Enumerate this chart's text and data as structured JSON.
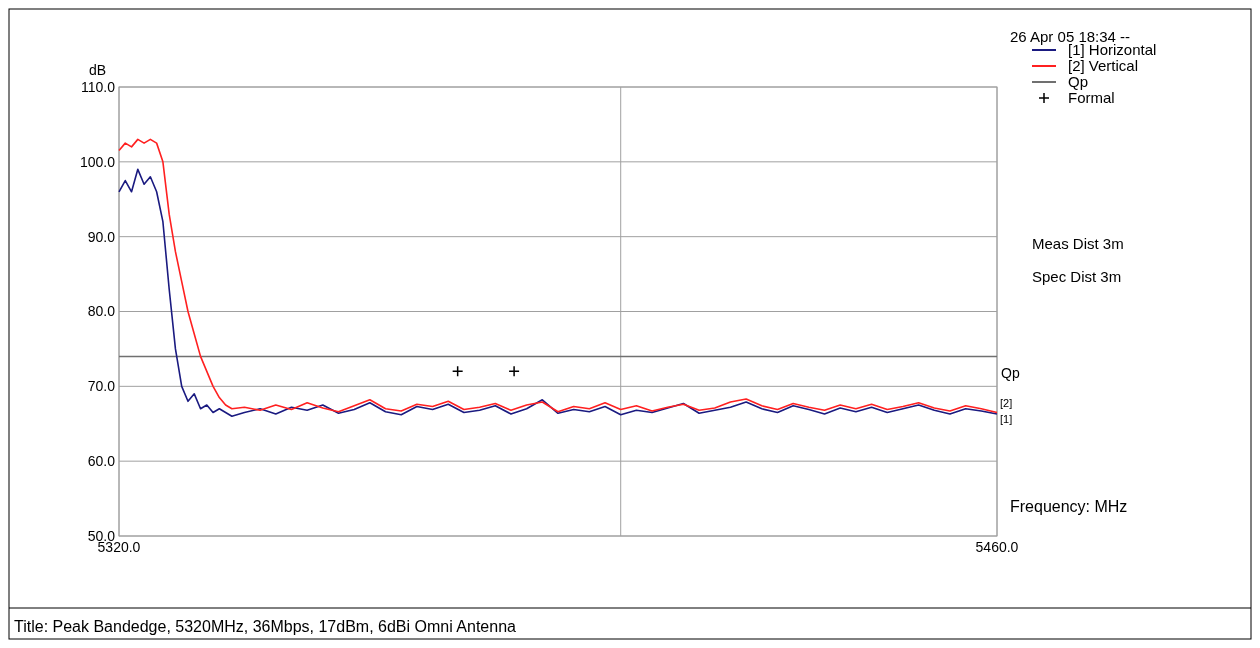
{
  "chart_data": {
    "type": "line",
    "ylabel": "dB",
    "xlabel": "Frequency: MHz",
    "x": [
      5320,
      5321,
      5322,
      5323,
      5324,
      5325,
      5326,
      5327,
      5328,
      5329,
      5330,
      5331,
      5332,
      5333,
      5334,
      5335,
      5336,
      5337,
      5338,
      5340,
      5342.5,
      5345,
      5347.5,
      5350,
      5352.5,
      5355,
      5357.5,
      5360,
      5362.5,
      5365,
      5367.5,
      5370,
      5372.5,
      5375,
      5377.5,
      5380,
      5382.5,
      5385,
      5387.5,
      5390,
      5392.5,
      5395,
      5397.5,
      5400,
      5402.5,
      5405,
      5407.5,
      5410,
      5412.5,
      5415,
      5417.5,
      5420,
      5422.5,
      5425,
      5427.5,
      5430,
      5432.5,
      5435,
      5437.5,
      5440,
      5442.5,
      5445,
      5447.5,
      5450,
      5452.5,
      5455,
      5457.5,
      5460
    ],
    "series": [
      {
        "name": "[1] Horizontal",
        "color": "#1a1a80",
        "values": [
          96,
          97.5,
          96,
          99,
          97,
          98,
          96,
          92,
          83,
          75,
          70,
          68,
          69,
          67,
          67.5,
          66.5,
          67,
          66.5,
          66,
          66.5,
          67.0,
          66.3,
          67.2,
          66.8,
          67.5,
          66.4,
          66.9,
          67.8,
          66.6,
          66.2,
          67.3,
          66.9,
          67.6,
          66.5,
          66.8,
          67.4,
          66.3,
          67.0,
          68.2,
          66.4,
          66.9,
          66.6,
          67.3,
          66.2,
          66.8,
          66.5,
          67.1,
          67.7,
          66.4,
          66.8,
          67.2,
          67.9,
          67.0,
          66.5,
          67.4,
          66.9,
          66.3,
          67.1,
          66.6,
          67.2,
          66.5,
          67.0,
          67.5,
          66.8,
          66.3,
          67.0,
          66.7,
          66.3
        ]
      },
      {
        "name": "[2] Vertical",
        "color": "#ff2020",
        "values": [
          101.5,
          102.5,
          102,
          103,
          102.5,
          103,
          102.5,
          100,
          93,
          88,
          84,
          80,
          77,
          74,
          72,
          70,
          68.5,
          67.5,
          67,
          67.2,
          66.8,
          67.5,
          66.9,
          67.8,
          67.1,
          66.6,
          67.4,
          68.2,
          67.0,
          66.7,
          67.6,
          67.3,
          68.0,
          66.9,
          67.2,
          67.7,
          66.8,
          67.5,
          67.9,
          66.6,
          67.3,
          67.0,
          67.8,
          66.9,
          67.4,
          66.7,
          67.2,
          67.6,
          66.8,
          67.1,
          67.9,
          68.3,
          67.4,
          66.9,
          67.7,
          67.2,
          66.8,
          67.5,
          67.0,
          67.6,
          66.9,
          67.3,
          67.8,
          67.1,
          66.7,
          67.4,
          67.0,
          66.5
        ]
      },
      {
        "name": "Formal",
        "type": "scatter",
        "marker": "cross",
        "color": "#000000",
        "x": [
          5374,
          5383
        ],
        "values": [
          72,
          72
        ]
      }
    ],
    "ref_lines": [
      {
        "axis": "y",
        "value": 74,
        "label": "Qp",
        "color": "#707070"
      }
    ],
    "annotations": [
      "26 Apr 05 18:34 --",
      "Meas Dist 3m",
      "Spec Dist 3m",
      "Title: Peak Bandedge, 5320MHz, 36Mbps, 17dBm, 6dBi Omni Antenna",
      {
        "text": "[2]",
        "x": 5460,
        "y": 67
      },
      {
        "text": "[1]",
        "x": 5460,
        "y": 66
      }
    ],
    "xlim": [
      5320,
      5460
    ],
    "ylim": [
      50,
      110
    ],
    "xticks": [
      {
        "value": 5320,
        "label": "5320.0"
      },
      {
        "value": 5400,
        "label": null
      },
      {
        "value": 5460,
        "label": "5460.0"
      }
    ],
    "yticks": [
      {
        "value": 50,
        "label": "50.0"
      },
      {
        "value": 60,
        "label": "60.0"
      },
      {
        "value": 70,
        "label": "70.0"
      },
      {
        "value": 80,
        "label": "80.0"
      },
      {
        "value": 90,
        "label": "90.0"
      },
      {
        "value": 100,
        "label": "100.0"
      },
      {
        "value": 110,
        "label": "110.0"
      }
    ],
    "grid": true,
    "legend": "right"
  }
}
